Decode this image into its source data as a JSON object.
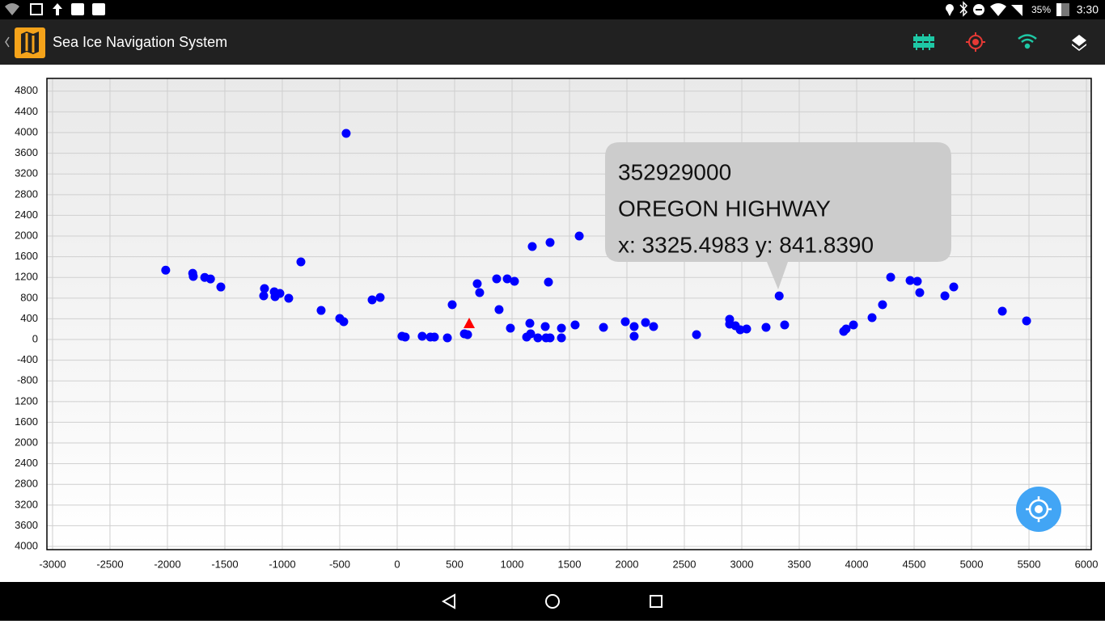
{
  "status_bar": {
    "battery": "35%",
    "time": "3:30"
  },
  "app_bar": {
    "title": "Sea Ice Navigation System"
  },
  "chart_data": {
    "type": "scatter",
    "xlim": [
      -3049,
      6042
    ],
    "ylim": [
      -4062,
      5047
    ],
    "xticks": [
      -3000,
      -2500,
      -2000,
      -1500,
      -1000,
      -500,
      0,
      500,
      1000,
      1500,
      2000,
      2500,
      3000,
      3500,
      4000,
      4500,
      5000,
      5500,
      6000
    ],
    "yticks": [
      4800,
      4400,
      4000,
      3600,
      3200,
      2800,
      2400,
      2000,
      1600,
      1200,
      800,
      400,
      0,
      -400,
      -800,
      {
        "value": -1200,
        "label": "1200"
      },
      {
        "value": -1600,
        "label": "1600"
      },
      {
        "value": -2000,
        "label": "2000"
      },
      {
        "value": -2400,
        "label": "2400"
      },
      {
        "value": -2800,
        "label": "2800"
      },
      {
        "value": -3200,
        "label": "3200"
      },
      {
        "value": -3600,
        "label": "3600"
      },
      {
        "value": -4000,
        "label": "4000"
      }
    ],
    "grid": true,
    "series": [
      {
        "color": "#0000ff",
        "marker": "circle",
        "x": [
          -2015,
          -1780,
          -1775,
          -1675,
          -1625,
          -1535,
          -1155,
          -1162,
          -1070,
          -1021,
          -1063,
          -944,
          -838,
          -662,
          -500,
          -465,
          -444,
          -218,
          -148,
          42,
          70,
          218,
          289,
          324,
          437,
          479,
          585,
          613,
          697,
          718,
          866,
          887,
          958,
          1021,
          986,
          1155,
          1127,
          1162,
          1176,
          1225,
          1289,
          1296,
          1331,
          1317,
          1331,
          1430,
          1430,
          1549,
          1585,
          1796,
          1986,
          2063,
          2063,
          2162,
          2232,
          2606,
          2894,
          2894,
          2944,
          2986,
          3042,
          3211,
          3325.4983,
          3373,
          3887,
          3908,
          3972,
          4134,
          4225,
          4296,
          4465,
          4528,
          4549,
          4768,
          4845,
          5268,
          5479
        ],
        "values": [
          1340,
          1280,
          1220,
          1200,
          1170,
          1015,
          984,
          844,
          922,
          891,
          828,
          797,
          1500,
          562,
          406,
          344,
          3984,
          766,
          813,
          63,
          47,
          63,
          47,
          47,
          31,
          672,
          109,
          94,
          1078,
          906,
          1172,
          578,
          1172,
          1125,
          219,
          313,
          47,
          109,
          1797,
          31,
          250,
          31,
          31,
          1109,
          1875,
          219,
          31,
          281,
          2000,
          234,
          344,
          250,
          63,
          328,
          250,
          94,
          391,
          297,
          266,
          188,
          203,
          234,
          841.839,
          281,
          156,
          203,
          281,
          422,
          672,
          1203,
          1141,
          1125,
          906,
          844,
          1016,
          547,
          359
        ]
      },
      {
        "color": "#ff0000",
        "marker": "triangle",
        "x": [
          627
        ],
        "values": [
          313
        ]
      }
    ],
    "tooltip": {
      "lines": [
        "352929000",
        "OREGON HIGHWAY",
        "x: 3325.4983 y: 841.8390"
      ]
    }
  }
}
